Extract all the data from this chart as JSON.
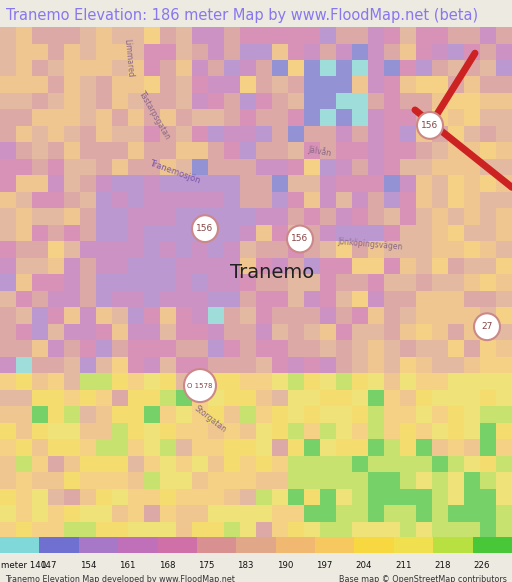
{
  "title": "Tranemo Elevation: 186 meter Map by www.FloodMap.net (beta)",
  "title_color": "#8877ee",
  "title_fontsize": 10.5,
  "bg_color": "#edeae2",
  "footer_text_left": "Tranemo Elevation Map developed by www.FloodMap.net",
  "footer_text_right": "Base map © OpenStreetMap contributors",
  "legend_labels": [
    "meter 140",
    "147",
    "154",
    "161",
    "168",
    "175",
    "183",
    "190",
    "197",
    "204",
    "211",
    "218",
    "226"
  ],
  "legend_colors": [
    "#80d8d8",
    "#7070d0",
    "#a878c8",
    "#c070b8",
    "#d070a8",
    "#d89090",
    "#e0a888",
    "#f0b870",
    "#f8c860",
    "#f8d840",
    "#f0e050",
    "#b8e040",
    "#48c838"
  ],
  "elev_colors": [
    "#80d8d8",
    "#7070d0",
    "#a878c8",
    "#c070b8",
    "#d070a8",
    "#d89090",
    "#e0a888",
    "#f0b870",
    "#f8c860",
    "#f8d840",
    "#f0e050",
    "#b8e040",
    "#48c838"
  ],
  "map_alpha": 0.72,
  "seed": 12345
}
